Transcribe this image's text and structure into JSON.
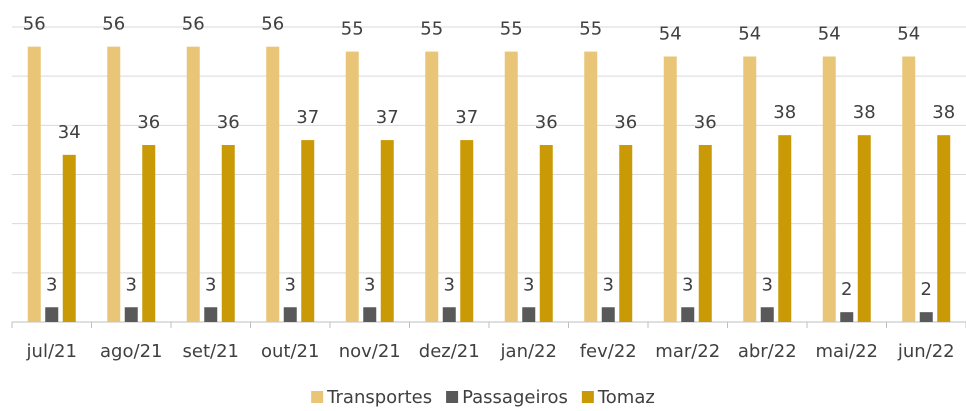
{
  "chart_data": {
    "type": "bar",
    "categories": [
      "jul/21",
      "ago/21",
      "set/21",
      "out/21",
      "nov/21",
      "dez/21",
      "jan/22",
      "fev/22",
      "mar/22",
      "abr/22",
      "mai/22",
      "jun/22"
    ],
    "series": [
      {
        "name": "Transportes",
        "color": "#E9C677",
        "values": [
          56,
          56,
          56,
          56,
          55,
          55,
          55,
          55,
          54,
          54,
          54,
          54
        ]
      },
      {
        "name": "Passageiros",
        "color": "#595959",
        "values": [
          3,
          3,
          3,
          3,
          3,
          3,
          3,
          3,
          3,
          3,
          2,
          2
        ]
      },
      {
        "name": "Tomaz",
        "color": "#C99A06",
        "values": [
          34,
          36,
          36,
          37,
          37,
          37,
          36,
          36,
          36,
          38,
          38,
          38
        ]
      }
    ],
    "ylim": [
      0,
      60
    ],
    "yticks": [
      0,
      10,
      20,
      30,
      40,
      50,
      60
    ],
    "grid": true,
    "legend": "bottom"
  }
}
